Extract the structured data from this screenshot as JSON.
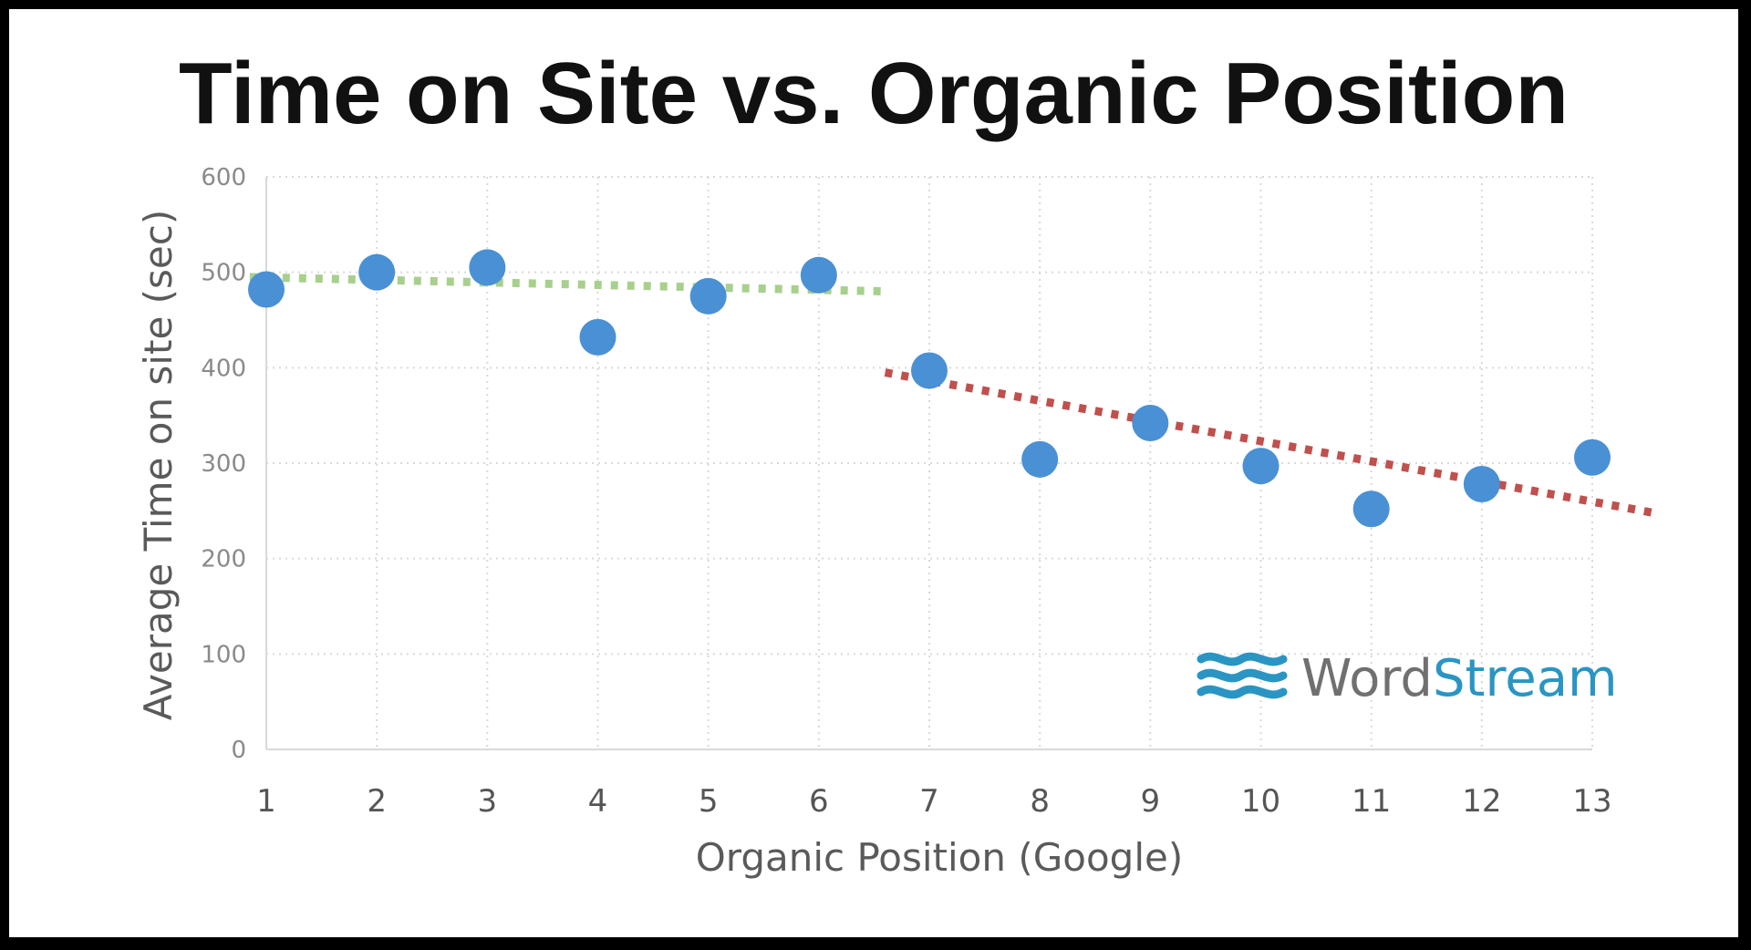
{
  "chart_data": {
    "type": "scatter",
    "title": "Time on Site vs. Organic Position",
    "xlabel": "Organic Position (Google)",
    "ylabel": "Average Time on site (sec)",
    "x": [
      1,
      2,
      3,
      4,
      5,
      6,
      7,
      8,
      9,
      10,
      11,
      12,
      13
    ],
    "y": [
      482,
      500,
      505,
      432,
      475,
      497,
      397,
      304,
      342,
      297,
      252,
      278,
      306
    ],
    "xlim": [
      1,
      13
    ],
    "ylim": [
      0,
      600
    ],
    "x_ticks": [
      "1",
      "2",
      "3",
      "4",
      "5",
      "6",
      "7",
      "8",
      "9",
      "10",
      "11",
      "12",
      "13"
    ],
    "y_ticks": [
      "0",
      "100",
      "200",
      "300",
      "400",
      "500",
      "600"
    ],
    "grid": true,
    "trendlines": [
      {
        "color": "#a8d08d",
        "style": "dotted",
        "x": [
          0.85,
          6.6
        ],
        "y": [
          495,
          480
        ]
      },
      {
        "color": "#c0504d",
        "style": "dotted",
        "x": [
          6.6,
          13.55
        ],
        "y": [
          395,
          248
        ]
      }
    ],
    "marker_color": "#4a90d4",
    "logo": {
      "part1": "Word",
      "part2": "Stream",
      "color1": "#707070",
      "color2": "#2a95c3"
    }
  }
}
